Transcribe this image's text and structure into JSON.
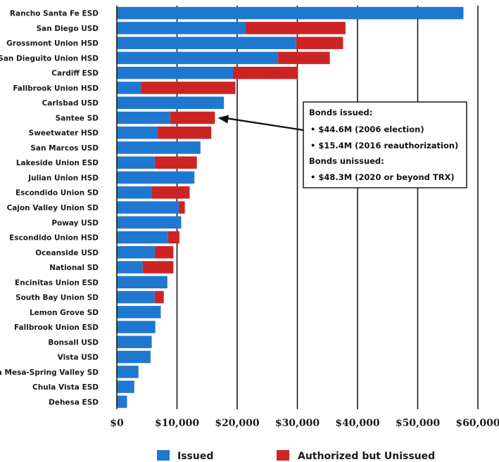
{
  "chart_data": {
    "type": "bar",
    "orientation": "horizontal",
    "stacked": true,
    "categories": [
      "Rancho Santa Fe ESD",
      "San Diego USD",
      "Grossmont Union HSD",
      "San Dieguito Union HSD",
      "Cardiff ESD",
      "Fallbrook Union HSD",
      "Carlsbad USD",
      "Santee SD",
      "Sweetwater HSD",
      "San Marcos USD",
      "Lakeside Union ESD",
      "Julian Union HSD",
      "Escondido Union SD",
      "Cajon Valley Union SD",
      "Poway USD",
      "Escondido Union HSD",
      "Oceanside USD",
      "National SD",
      "Encinitas Union ESD",
      "South Bay Union SD",
      "Lemon Grove SD",
      "Fallbrook Union ESD",
      "Bonsall USD",
      "Vista USD",
      "La Mesa-Spring Valley SD",
      "Chula Vista ESD",
      "Dehesa ESD"
    ],
    "series": [
      {
        "name": "Issued",
        "color": "#1f78d0",
        "values": [
          57600,
          21400,
          29800,
          26800,
          19300,
          4000,
          17800,
          8900,
          6800,
          13900,
          6300,
          12900,
          5800,
          10300,
          10700,
          8500,
          6300,
          4300,
          8400,
          6300,
          7300,
          6400,
          5800,
          5600,
          3600,
          2900,
          1700
        ]
      },
      {
        "name": "Authorized but Unissued",
        "color": "#cc2424",
        "values": [
          0,
          16600,
          7800,
          8600,
          10800,
          15700,
          0,
          7400,
          8900,
          0,
          7000,
          0,
          6300,
          1000,
          0,
          1900,
          3100,
          5100,
          0,
          1500,
          0,
          0,
          0,
          0,
          0,
          0,
          0
        ]
      }
    ],
    "xlim": [
      0,
      60000
    ],
    "xticks": [
      "$0",
      "$10,000",
      "$20,000",
      "$30,000",
      "$40,000",
      "$50,000",
      "$60,000"
    ],
    "grid": "vertical",
    "legend_position": "bottom",
    "annotation": {
      "target_category": "Santee SD",
      "header1": "Bonds issued:",
      "items1": [
        "• $44.6M (2006 election)",
        "• $15.4M (2016 reauthorization)"
      ],
      "header2": "Bonds unissued:",
      "items2": [
        "• $48.3M (2020 or beyond TRX)"
      ]
    }
  }
}
